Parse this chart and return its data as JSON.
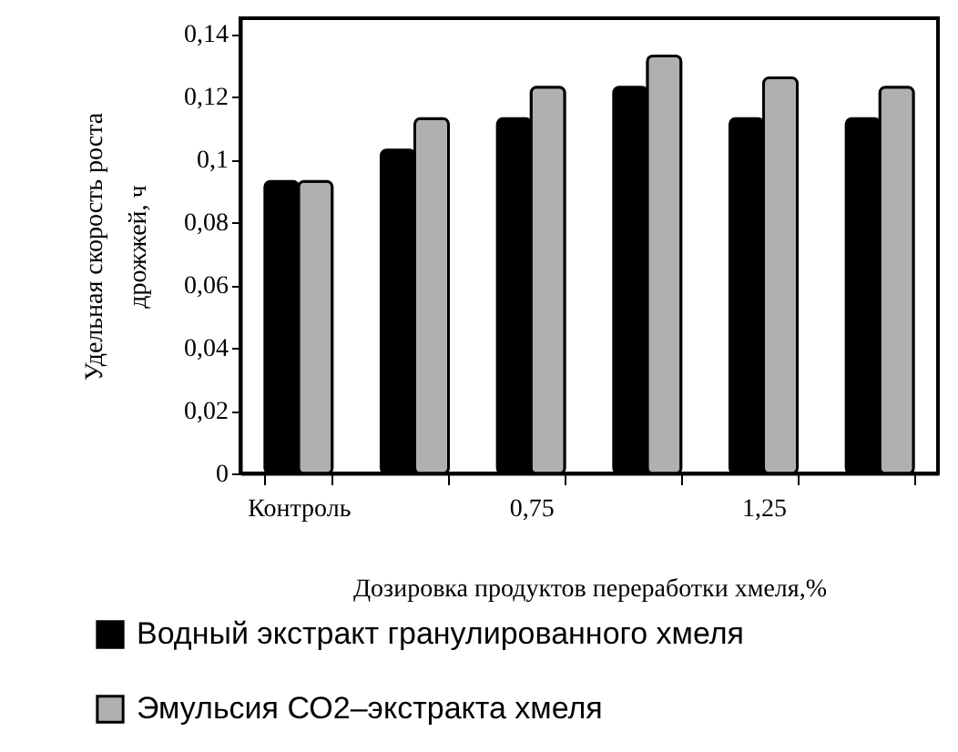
{
  "chart_data": {
    "type": "bar",
    "categories": [
      "Контроль",
      null,
      "0,75",
      null,
      "1,25",
      null
    ],
    "series": [
      {
        "name": "Водный экстракт гранулированного хмеля",
        "color": "#000000",
        "values": [
          0.093,
          0.103,
          0.113,
          0.123,
          0.113,
          0.113
        ]
      },
      {
        "name": "Эмульсия СО2–экстракта хмеля",
        "color": "#b0b0b0",
        "values": [
          0.093,
          0.113,
          0.123,
          0.133,
          0.126,
          0.123
        ]
      }
    ],
    "xlabel": "Дозировка продуктов переработки хмеля,%",
    "ylabel": "Удельная скорость роста дрожжей, ч",
    "ylim": [
      0,
      0.145
    ],
    "yticks": [
      0,
      {
        "value": 0.02,
        "label": "0,02"
      },
      {
        "value": 0.04,
        "label": "0,04"
      },
      {
        "value": 0.06,
        "label": "0,06"
      },
      {
        "value": 0.08,
        "label": "0,08"
      },
      {
        "value": 0.1,
        "label": "0,1"
      },
      {
        "value": 0.12,
        "label": "0,12"
      },
      {
        "value": 0.14,
        "label": "0,14"
      }
    ],
    "legend": "bottom"
  }
}
